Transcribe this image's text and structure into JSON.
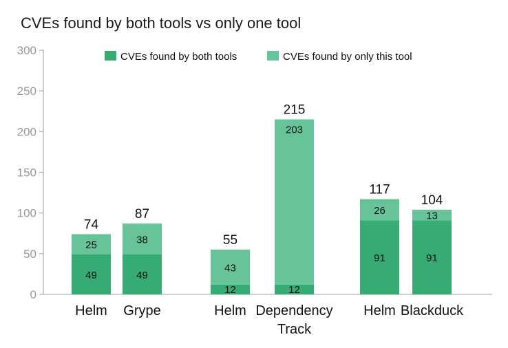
{
  "chart_data": {
    "type": "bar",
    "stacked": true,
    "title": "CVEs found by both tools vs only one tool",
    "xlabel": "",
    "ylabel": "",
    "ylim": [
      0,
      300
    ],
    "yticks": [
      0,
      50,
      100,
      150,
      200,
      250,
      300
    ],
    "grid": false,
    "legend_position": "top",
    "groups": [
      {
        "bars": [
          {
            "label": "Helm",
            "both": 49,
            "only": 25,
            "total": 74
          },
          {
            "label": "Grype",
            "both": 49,
            "only": 38,
            "total": 87
          }
        ]
      },
      {
        "bars": [
          {
            "label": "Helm",
            "both": 12,
            "only": 43,
            "total": 55
          },
          {
            "label": "Dependency Track",
            "label_lines": [
              "Dependency",
              "Track"
            ],
            "both": 12,
            "only": 203,
            "total": 215
          }
        ]
      },
      {
        "bars": [
          {
            "label": "Helm",
            "both": 91,
            "only": 26,
            "total": 117
          },
          {
            "label": "Blackduck",
            "both": 91,
            "only": 13,
            "total": 104
          }
        ]
      }
    ],
    "series": [
      {
        "name": "CVEs found by both tools",
        "key": "both",
        "color": "#37ab74"
      },
      {
        "name": "CVEs found by only this tool",
        "key": "only",
        "color": "#66c498"
      }
    ]
  }
}
